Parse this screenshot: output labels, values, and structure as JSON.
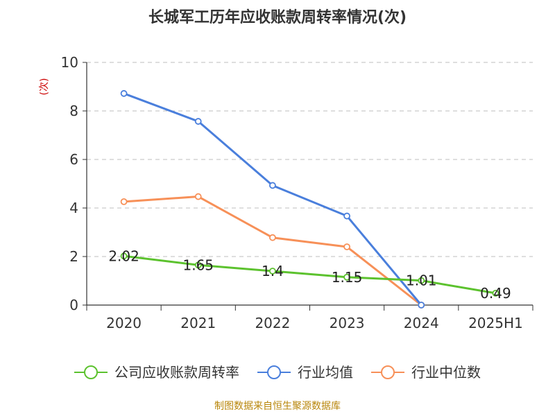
{
  "chart_data": {
    "type": "line",
    "title": "长城军工历年应收账款周转率情况(次)",
    "ylabel": "(次)",
    "xlabel": "",
    "categories": [
      "2020",
      "2021",
      "2022",
      "2023",
      "2024",
      "2025H1"
    ],
    "ylim": [
      0,
      10
    ],
    "yticks": [
      0,
      2,
      4,
      6,
      8,
      10
    ],
    "grid": true,
    "legend_position": "bottom",
    "series": [
      {
        "name": "公司应收账款周转率",
        "color": "#5cc22e",
        "values": [
          2.02,
          1.65,
          1.4,
          1.15,
          1.01,
          0.49
        ],
        "labels": [
          "2.02",
          "1.65",
          "1.4",
          "1.15",
          "1.01",
          "0.49"
        ]
      },
      {
        "name": "行业均值",
        "color": "#4a7fdc",
        "values": [
          8.72,
          7.57,
          4.93,
          3.67,
          0,
          null
        ]
      },
      {
        "name": "行业中位数",
        "color": "#f79058",
        "values": [
          4.26,
          4.47,
          2.78,
          2.4,
          0,
          null
        ]
      }
    ],
    "source": "制图数据来自恒生聚源数据库"
  }
}
